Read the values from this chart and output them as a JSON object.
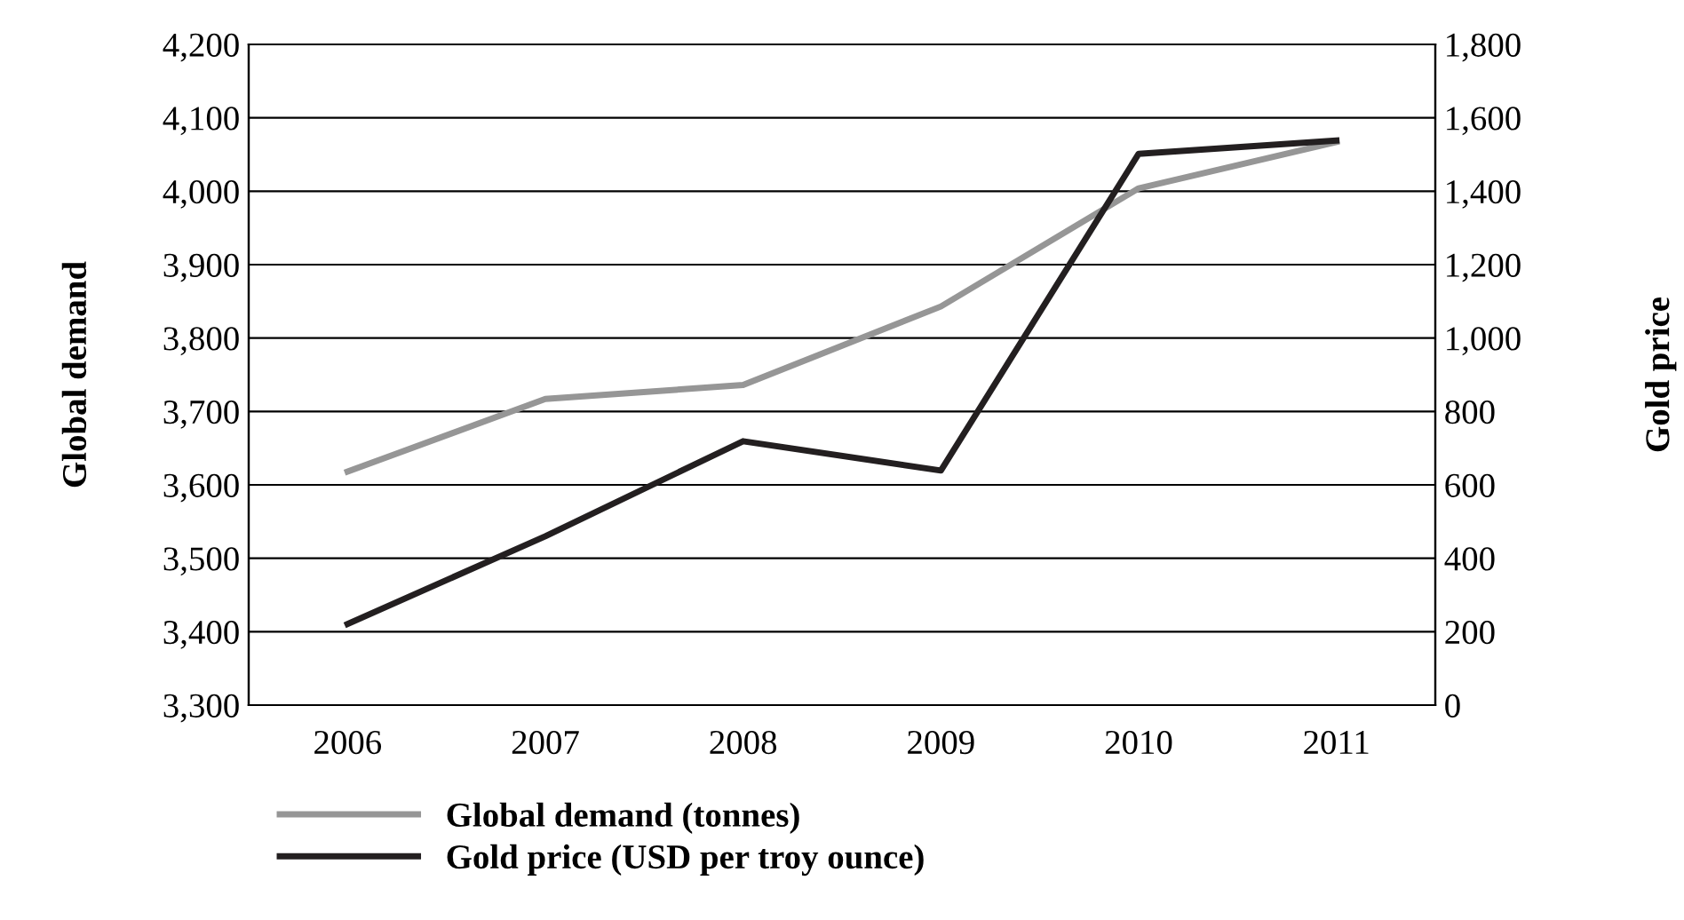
{
  "chart_data": {
    "type": "line",
    "categories": [
      "2006",
      "2007",
      "2008",
      "2009",
      "2010",
      "2011"
    ],
    "series": [
      {
        "name": "Global demand (tonnes)",
        "color": "#969696",
        "values": [
          3618,
          3717,
          3736,
          3843,
          4004,
          4067
        ]
      },
      {
        "name": "Gold price (USD per troy ounce)",
        "color": "#231f20",
        "values": [
          221,
          460,
          719,
          639,
          1502,
          1538
        ],
        "axis": "y2"
      }
    ],
    "ylabel": "Global demand",
    "y2label": "Gold price",
    "ylim": [
      3300,
      4200
    ],
    "yticks": [
      {
        "value": 3300,
        "label": "3,300"
      },
      {
        "value": 3400,
        "label": "3,400"
      },
      {
        "value": 3500,
        "label": "3,500"
      },
      {
        "value": 3600,
        "label": "3,600"
      },
      {
        "value": 3700,
        "label": "3,700"
      },
      {
        "value": 3800,
        "label": "3,800"
      },
      {
        "value": 3900,
        "label": "3,900"
      },
      {
        "value": 4000,
        "label": "4,000"
      },
      {
        "value": 4100,
        "label": "4,100"
      },
      {
        "value": 4200,
        "label": "4,200"
      }
    ],
    "y2lim": [
      0,
      1800
    ],
    "y2ticks": [
      0,
      200,
      400,
      600,
      800,
      {
        "value": 1000,
        "label": "1,000"
      },
      {
        "value": 1200,
        "label": "1,200"
      },
      {
        "value": 1400,
        "label": "1,400"
      },
      {
        "value": 1600,
        "label": "1,600"
      },
      {
        "value": 1800,
        "label": "1,800"
      }
    ],
    "grid": "y",
    "legend": "bottom",
    "marker": "none",
    "line_style": "solid"
  }
}
